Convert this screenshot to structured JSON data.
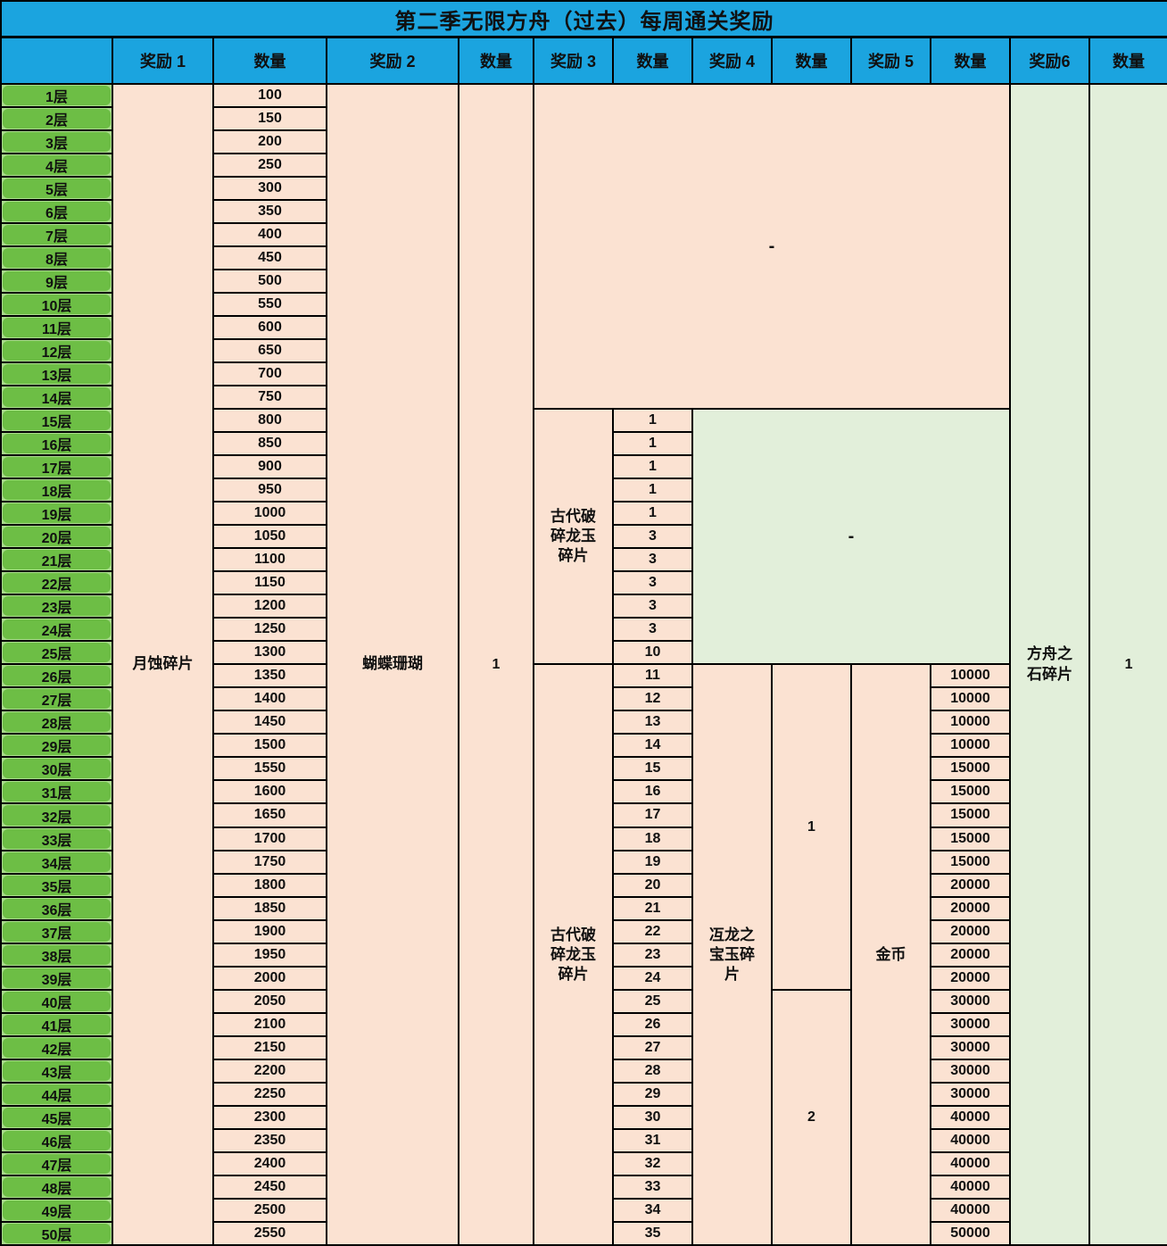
{
  "title": "第二季无限方舟（过去）每周通关奖励",
  "headers": [
    "",
    "奖励 1",
    "数量",
    "奖励 2",
    "数量",
    "奖励 3",
    "数量",
    "奖励 4",
    "数量",
    "奖励 5",
    "数量",
    "奖励6",
    "数量"
  ],
  "colors": {
    "header_bg": "#1BA4DF",
    "peach_bg": "#FBE2D2",
    "green_bg": "#E2EFDA",
    "floor_bg": "#6DBE45",
    "floor_bg_light": "#A9DB8C",
    "border": "#000000"
  },
  "chart_data": {
    "type": "table",
    "title": "第二季无限方舟（过去）每周通关奖励",
    "floors": [
      "1层",
      "2层",
      "3层",
      "4层",
      "5层",
      "6层",
      "7层",
      "8层",
      "9层",
      "10层",
      "11层",
      "12层",
      "13层",
      "14层",
      "15层",
      "16层",
      "17层",
      "18层",
      "19层",
      "20层",
      "21层",
      "22层",
      "23层",
      "24层",
      "25层",
      "26层",
      "27层",
      "28层",
      "29层",
      "30层",
      "31层",
      "32层",
      "33层",
      "34层",
      "35层",
      "36层",
      "37层",
      "38层",
      "39层",
      "40层",
      "41层",
      "42层",
      "43层",
      "44层",
      "45层",
      "46层",
      "47层",
      "48层",
      "49层",
      "50层"
    ],
    "reward1_name": "月蚀碎片",
    "reward1_qty": [
      100,
      150,
      200,
      250,
      300,
      350,
      400,
      450,
      500,
      550,
      600,
      650,
      700,
      750,
      800,
      850,
      900,
      950,
      1000,
      1050,
      1100,
      1150,
      1200,
      1250,
      1300,
      1350,
      1400,
      1450,
      1500,
      1550,
      1600,
      1650,
      1700,
      1750,
      1800,
      1850,
      1900,
      1950,
      2000,
      2050,
      2100,
      2150,
      2200,
      2250,
      2300,
      2350,
      2400,
      2450,
      2500,
      2550
    ],
    "reward2_name": "蝴蝶珊瑚",
    "reward2_qty": "1",
    "floors_1_14": {
      "rewards3_to_5": "-"
    },
    "floors_15_25": {
      "reward3_name": "古代破碎龙玉碎片",
      "reward3_qty": [
        1,
        1,
        1,
        1,
        1,
        3,
        3,
        3,
        3,
        3,
        10
      ],
      "rewards4_to_5": "-"
    },
    "floors_26_50": {
      "reward3_name": "古代破碎龙玉碎片",
      "reward3_qty": [
        11,
        12,
        13,
        14,
        15,
        16,
        17,
        18,
        19,
        20,
        21,
        22,
        23,
        24,
        25,
        26,
        27,
        28,
        29,
        30,
        31,
        32,
        33,
        34,
        35
      ],
      "reward4_name": "冱龙之宝玉碎片",
      "reward4_qty_floors_26_39": "1",
      "reward4_qty_floors_40_50": "2",
      "reward5_name": "金币",
      "reward5_qty": [
        10000,
        10000,
        10000,
        10000,
        15000,
        15000,
        15000,
        15000,
        15000,
        20000,
        20000,
        20000,
        20000,
        20000,
        30000,
        30000,
        30000,
        30000,
        30000,
        40000,
        40000,
        40000,
        40000,
        40000,
        50000
      ]
    },
    "reward6_name": "方舟之石碎片",
    "reward6_qty": "1"
  }
}
